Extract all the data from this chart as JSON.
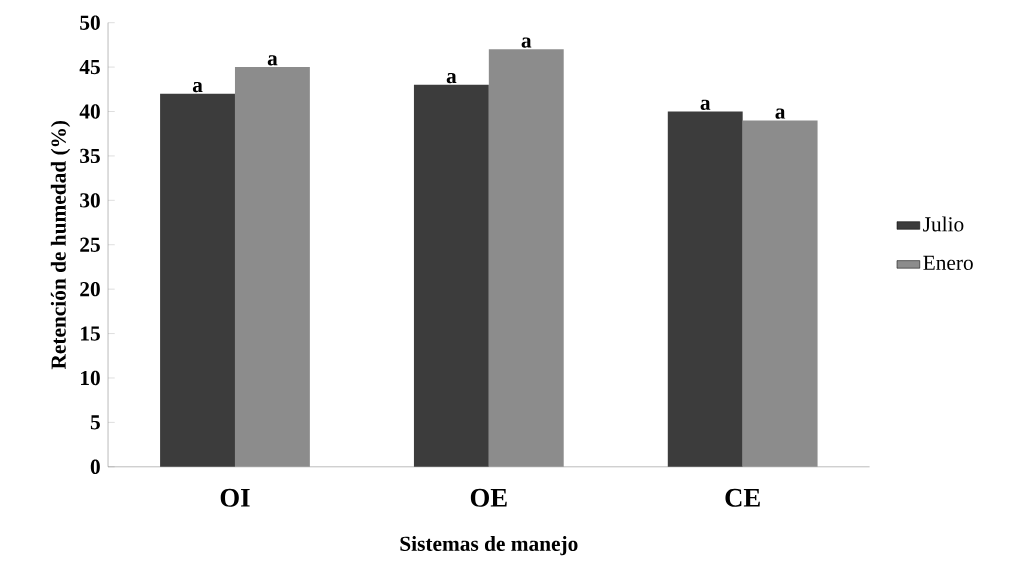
{
  "chart_data": {
    "type": "bar",
    "xlabel": "Sistemas de manejo",
    "ylabel": "Retención de humedad (%)",
    "categories": [
      "OI",
      "OE",
      "CE"
    ],
    "series": [
      {
        "name": "Julio",
        "color": "#3c3c3c",
        "values": [
          42,
          43,
          40
        ]
      },
      {
        "name": "Enero",
        "color": "#8c8c8c",
        "values": [
          45,
          47,
          39
        ]
      }
    ],
    "ylim": [
      0,
      50
    ],
    "yticks": [
      0,
      5,
      10,
      15,
      20,
      25,
      30,
      35,
      40,
      45,
      50
    ],
    "grid": false,
    "legend": "right",
    "annotations": [
      {
        "text": "a",
        "x": "OI",
        "y": 42
      },
      {
        "text": "a",
        "x": "OI",
        "y": 45
      },
      {
        "text": "a",
        "x": "OE",
        "y": 43
      },
      {
        "text": "a",
        "x": "OE",
        "y": 47
      },
      {
        "text": "a",
        "x": "CE",
        "y": 40
      },
      {
        "text": "a",
        "x": "CE",
        "y": 39
      }
    ]
  }
}
